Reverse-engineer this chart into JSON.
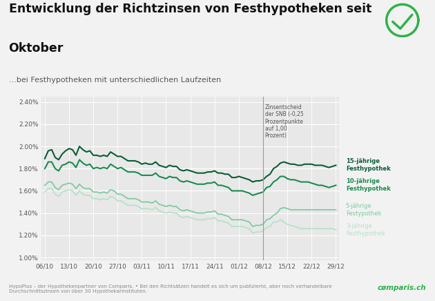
{
  "title_line1": "Entwicklung der Richtzinsen von Festhypotheken seit",
  "title_line2": "Oktober",
  "subtitle": "...bei Festhypotheken mit unterschiedlichen Laufzeiten",
  "background_color": "#f2f2f2",
  "plot_background_color": "#e8e8e8",
  "footer_text": "HypoPlus – der Hypothekenpartner von Comparis. • Bei den Richtsätzen handelt es sich um publizierte, aber noch verhandelbare\nDurchschnittszinsen von über 30 Hypothekarinstituten.",
  "comparis_text": "cømparis.ch",
  "comparis_color": "#2db34a",
  "annotation_text": "Zinsentscheid\nder SNB (-0,25\nProzentpunkte\nauf 1,00\nProzent)",
  "vline_x_index": 63,
  "x_labels": [
    "06/10",
    "13/10",
    "20/10",
    "27/10",
    "03/11",
    "10/11",
    "17/11",
    "24/11",
    "01/12",
    "08/12",
    "15/12",
    "22/12",
    "29/12"
  ],
  "x_label_indices": [
    0,
    7,
    14,
    21,
    28,
    35,
    42,
    49,
    56,
    63,
    70,
    77,
    84
  ],
  "y_ticks": [
    1.0,
    1.2,
    1.4,
    1.6,
    1.8,
    2.0,
    2.2,
    2.4
  ],
  "ylim": [
    0.975,
    2.45
  ],
  "colors": {
    "15y": "#0a5c36",
    "10y": "#1a8a50",
    "5y": "#7ecba1",
    "3y": "#b8e0c8"
  },
  "series_15y": [
    1.89,
    1.96,
    1.97,
    1.9,
    1.88,
    1.93,
    1.96,
    1.98,
    1.97,
    1.92,
    2.0,
    1.97,
    1.95,
    1.96,
    1.92,
    1.92,
    1.91,
    1.92,
    1.91,
    1.95,
    1.93,
    1.91,
    1.91,
    1.89,
    1.87,
    1.87,
    1.87,
    1.86,
    1.84,
    1.85,
    1.84,
    1.84,
    1.86,
    1.83,
    1.82,
    1.81,
    1.83,
    1.82,
    1.82,
    1.79,
    1.78,
    1.79,
    1.78,
    1.77,
    1.76,
    1.76,
    1.76,
    1.77,
    1.77,
    1.78,
    1.76,
    1.76,
    1.75,
    1.75,
    1.72,
    1.72,
    1.73,
    1.72,
    1.71,
    1.7,
    1.68,
    1.69,
    1.69,
    1.7,
    1.73,
    1.75,
    1.8,
    1.82,
    1.85,
    1.86,
    1.85,
    1.84,
    1.84,
    1.83,
    1.83,
    1.84,
    1.84,
    1.84,
    1.83,
    1.83,
    1.83,
    1.82,
    1.81,
    1.82,
    1.83
  ],
  "series_10y": [
    1.8,
    1.86,
    1.86,
    1.8,
    1.78,
    1.83,
    1.84,
    1.86,
    1.85,
    1.81,
    1.88,
    1.85,
    1.83,
    1.84,
    1.8,
    1.81,
    1.8,
    1.81,
    1.8,
    1.84,
    1.82,
    1.8,
    1.81,
    1.79,
    1.77,
    1.77,
    1.77,
    1.76,
    1.74,
    1.74,
    1.74,
    1.74,
    1.76,
    1.73,
    1.72,
    1.71,
    1.73,
    1.72,
    1.72,
    1.69,
    1.68,
    1.69,
    1.68,
    1.67,
    1.66,
    1.66,
    1.66,
    1.67,
    1.67,
    1.68,
    1.65,
    1.65,
    1.64,
    1.63,
    1.6,
    1.6,
    1.6,
    1.6,
    1.59,
    1.58,
    1.56,
    1.57,
    1.58,
    1.59,
    1.63,
    1.64,
    1.68,
    1.7,
    1.73,
    1.73,
    1.71,
    1.7,
    1.7,
    1.69,
    1.68,
    1.68,
    1.68,
    1.67,
    1.66,
    1.65,
    1.65,
    1.64,
    1.63,
    1.64,
    1.65
  ],
  "series_5y": [
    1.65,
    1.68,
    1.68,
    1.63,
    1.61,
    1.65,
    1.66,
    1.67,
    1.66,
    1.62,
    1.66,
    1.63,
    1.62,
    1.62,
    1.59,
    1.59,
    1.58,
    1.59,
    1.58,
    1.61,
    1.6,
    1.57,
    1.57,
    1.55,
    1.53,
    1.53,
    1.53,
    1.52,
    1.5,
    1.5,
    1.5,
    1.49,
    1.51,
    1.48,
    1.47,
    1.46,
    1.47,
    1.46,
    1.46,
    1.43,
    1.42,
    1.43,
    1.42,
    1.41,
    1.4,
    1.4,
    1.4,
    1.41,
    1.41,
    1.42,
    1.39,
    1.39,
    1.38,
    1.37,
    1.34,
    1.34,
    1.34,
    1.34,
    1.33,
    1.32,
    1.28,
    1.29,
    1.29,
    1.3,
    1.34,
    1.35,
    1.38,
    1.4,
    1.44,
    1.45,
    1.44,
    1.43,
    1.43,
    1.43,
    1.43,
    1.43,
    1.43,
    1.43,
    1.43,
    1.43,
    1.43,
    1.43,
    1.43,
    1.43,
    1.43
  ],
  "series_3y": [
    1.59,
    1.62,
    1.62,
    1.57,
    1.55,
    1.59,
    1.6,
    1.61,
    1.6,
    1.56,
    1.6,
    1.57,
    1.56,
    1.56,
    1.53,
    1.53,
    1.52,
    1.53,
    1.52,
    1.55,
    1.54,
    1.51,
    1.51,
    1.49,
    1.47,
    1.47,
    1.47,
    1.46,
    1.44,
    1.44,
    1.44,
    1.43,
    1.45,
    1.42,
    1.41,
    1.4,
    1.41,
    1.4,
    1.4,
    1.37,
    1.36,
    1.37,
    1.36,
    1.35,
    1.34,
    1.34,
    1.34,
    1.35,
    1.35,
    1.36,
    1.33,
    1.33,
    1.32,
    1.31,
    1.28,
    1.28,
    1.28,
    1.28,
    1.27,
    1.26,
    1.22,
    1.23,
    1.23,
    1.24,
    1.27,
    1.28,
    1.32,
    1.32,
    1.34,
    1.32,
    1.3,
    1.29,
    1.28,
    1.27,
    1.26,
    1.26,
    1.26,
    1.26,
    1.26,
    1.26,
    1.26,
    1.26,
    1.26,
    1.26,
    1.25
  ]
}
